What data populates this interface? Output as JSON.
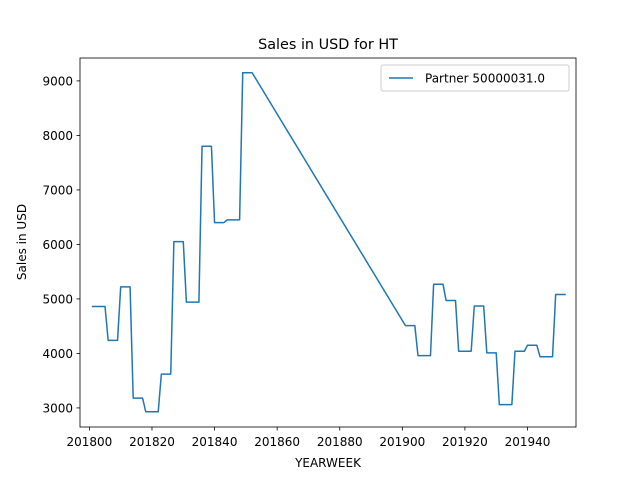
{
  "chart_data": {
    "type": "line",
    "title": "Sales in USD for HT",
    "xlabel": "YEARWEEK",
    "ylabel": "Sales in USD",
    "xlim": [
      201797,
      201955.5
    ],
    "ylim": [
      2650,
      9420
    ],
    "xticks": [
      201800,
      201820,
      201840,
      201860,
      201880,
      201900,
      201920,
      201940
    ],
    "yticks": [
      3000,
      4000,
      5000,
      6000,
      7000,
      8000,
      9000
    ],
    "grid": false,
    "legend_position": "top-right",
    "series": [
      {
        "name": "Partner 50000031.0",
        "color": "#1f77b4",
        "x": [
          201801,
          201805,
          201806,
          201809,
          201810,
          201813,
          201814,
          201817,
          201818,
          201822,
          201823,
          201826,
          201827,
          201830,
          201831,
          201835,
          201836,
          201839,
          201840,
          201843,
          201844,
          201848,
          201849,
          201852,
          201901,
          201904,
          201905,
          201909,
          201910,
          201913,
          201914,
          201917,
          201918,
          201922,
          201923,
          201926,
          201927,
          201930,
          201931,
          201935,
          201936,
          201939,
          201940,
          201943,
          201944,
          201948,
          201949,
          201952
        ],
        "y": [
          4860,
          4860,
          4240,
          4240,
          5220,
          5220,
          3180,
          3180,
          2930,
          2930,
          3620,
          3620,
          6050,
          6050,
          4940,
          4940,
          7800,
          7800,
          6400,
          6400,
          6450,
          6450,
          9150,
          9150,
          4510,
          4510,
          3960,
          3960,
          5270,
          5270,
          4970,
          4970,
          4040,
          4040,
          4870,
          4870,
          4010,
          4010,
          3060,
          3060,
          4040,
          4040,
          4150,
          4150,
          3940,
          3940,
          5080,
          5080
        ]
      }
    ]
  }
}
